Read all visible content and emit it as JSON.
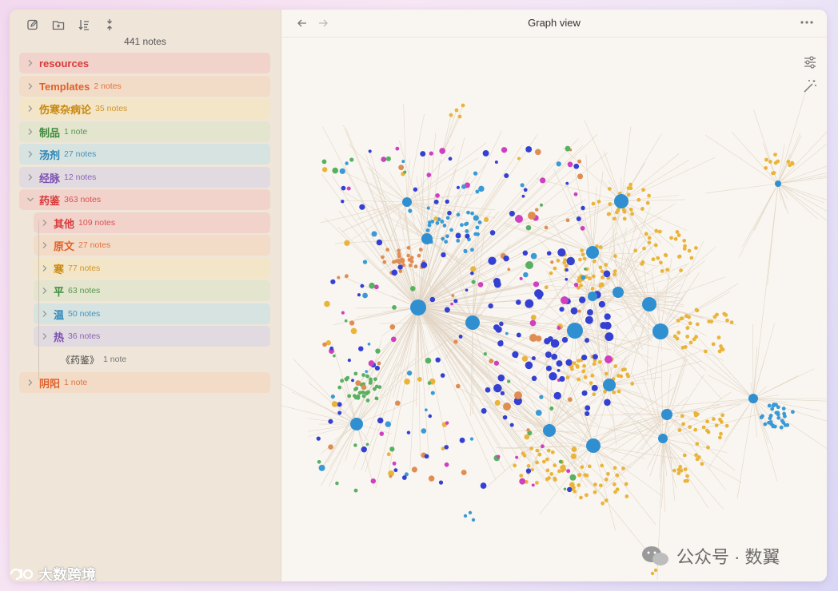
{
  "sidebar": {
    "note_count": "441 notes",
    "toolbar": [
      {
        "name": "new-note-icon"
      },
      {
        "name": "new-folder-icon"
      },
      {
        "name": "sort-icon"
      },
      {
        "name": "collapse-all-icon"
      }
    ],
    "items": [
      {
        "label": "resources",
        "count": "",
        "color": "#d83a3a",
        "bg": "#f1d3cc",
        "indent": 0,
        "expanded": false
      },
      {
        "label": "Templates",
        "count": "2 notes",
        "color": "#e0602a",
        "bg": "#f2dcc8",
        "indent": 0,
        "expanded": false
      },
      {
        "label": "伤寒杂病论",
        "count": "35 notes",
        "color": "#c8870e",
        "bg": "#f3e6c8",
        "indent": 0,
        "expanded": false
      },
      {
        "label": "制品",
        "count": "1 note",
        "color": "#3f8a3a",
        "bg": "#e3e5cf",
        "indent": 0,
        "expanded": false
      },
      {
        "label": "汤剂",
        "count": "27 notes",
        "color": "#2b85b8",
        "bg": "#d7e3e0",
        "indent": 0,
        "expanded": false
      },
      {
        "label": "经脉",
        "count": "12 notes",
        "color": "#7b4fb0",
        "bg": "#e1dae0",
        "indent": 0,
        "expanded": false
      },
      {
        "label": "药鉴",
        "count": "363 notes",
        "color": "#d83a3a",
        "bg": "#f1d3cc",
        "indent": 0,
        "expanded": true
      },
      {
        "label": "其他",
        "count": "109 notes",
        "color": "#d83a3a",
        "bg": "#f1d3cc",
        "indent": 1,
        "expanded": false
      },
      {
        "label": "原文",
        "count": "27 notes",
        "color": "#e0602a",
        "bg": "#f2dcc8",
        "indent": 1,
        "expanded": false
      },
      {
        "label": "寒",
        "count": "77 notes",
        "color": "#c8870e",
        "bg": "#f3e6c8",
        "indent": 1,
        "expanded": false
      },
      {
        "label": "平",
        "count": "63 notes",
        "color": "#3f8a3a",
        "bg": "#e3e5cf",
        "indent": 1,
        "expanded": false
      },
      {
        "label": "温",
        "count": "50 notes",
        "color": "#2b85b8",
        "bg": "#d7e3e0",
        "indent": 1,
        "expanded": false
      },
      {
        "label": "热",
        "count": "36 notes",
        "color": "#7b4fb0",
        "bg": "#e1dae0",
        "indent": 1,
        "expanded": false
      },
      {
        "label": "《药鉴》",
        "count": "1 note",
        "color": "#444444",
        "bg": "",
        "indent": 1,
        "file": true
      },
      {
        "label": "阴阳",
        "count": "1 note",
        "color": "#e0602a",
        "bg": "#f2dcc8",
        "indent": 0,
        "expanded": false
      }
    ]
  },
  "main": {
    "title": "Graph view",
    "back_icon": "arrow-left-icon",
    "forward_icon": "arrow-right-icon",
    "more_icon": "more-options-icon",
    "controls": [
      "graph-settings-icon",
      "animate-icon"
    ]
  },
  "colors": {
    "edge": "#e2d5c5",
    "hub": "#2f8fd0",
    "yellow": "#eab43b",
    "orange": "#df8d52",
    "green": "#58b061",
    "blue": "#3a9ad5",
    "indigo": "#3440d2",
    "magenta": "#cf3fbf"
  },
  "watermark": "公众号 · 数翼",
  "brand": "大数跨境"
}
